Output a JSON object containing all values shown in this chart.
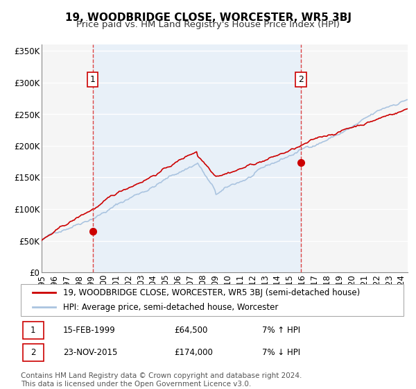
{
  "title": "19, WOODBRIDGE CLOSE, WORCESTER, WR5 3BJ",
  "subtitle": "Price paid vs. HM Land Registry's House Price Index (HPI)",
  "ylabel_ticks": [
    "£0",
    "£50K",
    "£100K",
    "£150K",
    "£200K",
    "£250K",
    "£300K",
    "£350K"
  ],
  "ytick_values": [
    0,
    50000,
    100000,
    150000,
    200000,
    250000,
    300000,
    350000
  ],
  "ylim": [
    0,
    360000
  ],
  "xlim_start": 1995.0,
  "xlim_end": 2024.5,
  "sale1_x": 1999.12,
  "sale1_y": 64500,
  "sale2_x": 2015.9,
  "sale2_y": 174000,
  "vline1_x": 1999.12,
  "vline2_x": 2015.9,
  "hpi_color": "#aac4e0",
  "price_color": "#cc0000",
  "dot_color": "#cc0000",
  "vline_color": "#dd4444",
  "bg_fill_color": "#e8f0f8",
  "legend_entry1": "19, WOODBRIDGE CLOSE, WORCESTER, WR5 3BJ (semi-detached house)",
  "legend_entry2": "HPI: Average price, semi-detached house, Worcester",
  "table_row1_date": "15-FEB-1999",
  "table_row1_price": "£64,500",
  "table_row1_hpi": "7% ↑ HPI",
  "table_row2_date": "23-NOV-2015",
  "table_row2_price": "£174,000",
  "table_row2_hpi": "7% ↓ HPI",
  "footnote1": "Contains HM Land Registry data © Crown copyright and database right 2024.",
  "footnote2": "This data is licensed under the Open Government Licence v3.0.",
  "title_fontsize": 11,
  "subtitle_fontsize": 9.5,
  "tick_fontsize": 8.5,
  "legend_fontsize": 8.5,
  "table_fontsize": 8.5,
  "footnote_fontsize": 7.5
}
